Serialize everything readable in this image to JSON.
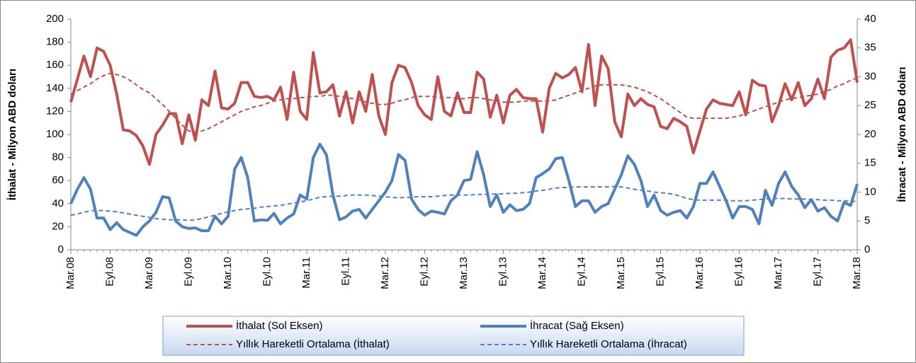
{
  "chart_data": {
    "type": "line",
    "y_label": "İthalat - Milyon  ABD doları",
    "y2_label": "İhracat - Milyon ABD doları",
    "categories": [
      "Mar.08",
      null,
      null,
      null,
      null,
      null,
      "Eyl.08",
      null,
      null,
      null,
      null,
      null,
      "Mar.09",
      null,
      null,
      null,
      null,
      null,
      "Eyl.09",
      null,
      null,
      null,
      null,
      null,
      "Mar.10",
      null,
      null,
      null,
      null,
      null,
      "Eyl.10",
      null,
      null,
      null,
      null,
      null,
      "Mar.11",
      null,
      null,
      null,
      null,
      null,
      "Eyl.11",
      null,
      null,
      null,
      null,
      null,
      "Mar.12",
      null,
      null,
      null,
      null,
      null,
      "Eyl.12",
      null,
      null,
      null,
      null,
      null,
      "Mar.13",
      null,
      null,
      null,
      null,
      null,
      "Eyl.13",
      null,
      null,
      null,
      null,
      null,
      "Mar.14",
      null,
      null,
      null,
      null,
      null,
      "Eyl.14",
      null,
      null,
      null,
      null,
      null,
      "Mar.15",
      null,
      null,
      null,
      null,
      null,
      "Eyl.15",
      null,
      null,
      null,
      null,
      null,
      "Mar.16",
      null,
      null,
      null,
      null,
      null,
      "Eyl.16",
      null,
      null,
      null,
      null,
      null,
      "Mar.17",
      null,
      null,
      null,
      null,
      null,
      "Eyl.17",
      null,
      null,
      null,
      null,
      null,
      "Mar.18"
    ],
    "ylim": [
      0,
      200
    ],
    "yticks": [
      0,
      20,
      40,
      60,
      80,
      100,
      120,
      140,
      160,
      180,
      200
    ],
    "y2lim": [
      0,
      40
    ],
    "y2ticks": [
      0,
      5,
      10,
      15,
      20,
      25,
      30,
      35,
      40
    ],
    "grid": false,
    "legend": "bottom",
    "series": [
      {
        "name": "İthalat (Sol Eksen)",
        "color": "#c0504d",
        "dashed": false,
        "values": [
          128,
          148,
          168,
          150,
          175,
          172,
          160,
          135,
          104,
          103,
          99,
          90,
          74,
          100,
          108,
          118,
          118,
          92,
          117,
          95,
          130,
          125,
          155,
          123,
          122,
          127,
          145,
          145,
          133,
          132,
          133,
          130,
          141,
          113,
          154,
          120,
          113,
          171,
          136,
          137,
          143,
          116,
          137,
          110,
          137,
          120,
          152,
          116,
          100,
          145,
          160,
          158,
          145,
          125,
          117,
          113,
          150,
          120,
          116,
          136,
          119,
          119,
          154,
          148,
          115,
          134,
          110,
          134,
          139,
          132,
          131,
          131,
          102,
          140,
          153,
          149,
          152,
          158,
          137,
          178,
          125,
          168,
          157,
          111,
          98,
          135,
          125,
          131,
          126,
          124,
          107,
          105,
          114,
          111,
          107,
          84,
          103,
          122,
          130,
          127,
          126,
          125,
          137,
          117,
          147,
          143,
          142,
          111,
          125,
          144,
          130,
          145,
          125,
          131,
          148,
          131,
          167,
          173,
          175,
          182,
          145
        ]
      },
      {
        "name": "İhracat (Sağ Eksen)",
        "color": "#4f81bd",
        "dashed": false,
        "axis": "y2",
        "values": [
          8,
          10.5,
          12.5,
          10.5,
          5.5,
          5.5,
          3.5,
          4.7,
          3.5,
          3,
          2.5,
          4,
          5,
          6.5,
          9.2,
          9,
          5,
          4,
          3.7,
          3.8,
          3.3,
          3.3,
          5.8,
          4.5,
          5.8,
          14,
          16,
          12.5,
          5,
          5.2,
          5.1,
          6.3,
          4.5,
          5.5,
          6.2,
          9.5,
          8.8,
          16,
          18.3,
          16.5,
          9.5,
          5.2,
          5.7,
          6.7,
          7,
          5.5,
          7,
          8.5,
          10,
          12,
          16.5,
          15.5,
          8.8,
          7,
          6,
          6.7,
          6.5,
          6.2,
          8.5,
          9.5,
          12,
          12.2,
          17,
          13,
          7.5,
          9.5,
          6.5,
          7.8,
          6.8,
          7,
          8,
          12.5,
          13.2,
          14,
          15.8,
          16,
          12,
          7.5,
          8.5,
          8.5,
          6.5,
          7.5,
          8,
          10.5,
          13,
          16.3,
          14.8,
          12,
          7.5,
          9.5,
          6.8,
          6,
          6.5,
          6.8,
          5.5,
          7.5,
          11.5,
          11.5,
          13.5,
          11,
          8.5,
          5.5,
          7.5,
          7.5,
          7,
          4.5,
          10.3,
          7.7,
          11.5,
          13.5,
          11,
          9.5,
          7.3,
          8.7,
          6.7,
          7.3,
          5.8,
          5,
          8.2,
          7.7,
          11.4
        ]
      },
      {
        "name": "Yıllık Hareketli Ortalama (İthalat)",
        "color": "#c0504d",
        "dashed": true,
        "values": [
          135,
          138,
          141,
          144,
          148,
          151,
          153,
          152,
          150,
          147,
          143,
          139,
          136,
          131,
          126,
          120,
          114,
          108,
          103,
          102,
          103,
          105,
          108,
          111,
          114,
          117,
          120,
          122,
          124,
          125,
          127,
          129,
          130,
          131,
          131,
          132,
          132,
          133,
          133,
          134,
          134,
          133,
          132,
          131,
          130,
          128,
          127,
          126,
          126,
          127,
          129,
          130,
          132,
          133,
          133,
          133,
          132,
          132,
          132,
          131,
          131,
          132,
          132,
          131,
          130,
          129,
          128,
          128,
          128,
          129,
          129,
          129,
          129,
          129,
          130,
          132,
          134,
          136,
          138,
          140,
          142,
          143,
          143,
          143,
          143,
          142,
          141,
          139,
          137,
          134,
          131,
          127,
          123,
          119,
          115,
          114,
          114,
          114,
          114,
          114,
          114,
          115,
          116,
          118,
          120,
          122,
          124,
          126,
          128,
          130,
          131,
          132,
          133,
          134,
          135,
          137,
          139,
          142,
          144,
          147,
          149
        ]
      },
      {
        "name": "Yıllık Hareketli Ortalama (İhracat)",
        "color": "#4f81bd",
        "dashed": true,
        "axis": "y2",
        "values": [
          6.0,
          6.2,
          6.5,
          6.8,
          6.8,
          6.8,
          6.7,
          6.6,
          6.4,
          6.2,
          6.0,
          5.8,
          5.6,
          5.4,
          5.3,
          5.2,
          5.2,
          5.2,
          5.1,
          5.2,
          5.4,
          5.7,
          6.0,
          6.3,
          6.6,
          6.8,
          7.0,
          7.1,
          7.2,
          7.4,
          7.5,
          7.6,
          7.7,
          7.9,
          8.1,
          8.3,
          8.5,
          8.8,
          9.1,
          9.2,
          9.3,
          9.3,
          9.4,
          9.5,
          9.5,
          9.5,
          9.4,
          9.3,
          9.2,
          9.1,
          9.0,
          9.1,
          9.1,
          9.2,
          9.2,
          9.2,
          9.3,
          9.4,
          9.5,
          9.5,
          9.5,
          9.5,
          9.6,
          9.6,
          9.6,
          9.7,
          9.7,
          9.8,
          9.8,
          9.9,
          10.0,
          10.2,
          10.3,
          10.5,
          10.7,
          10.8,
          10.8,
          10.9,
          10.9,
          10.9,
          10.9,
          10.9,
          10.9,
          11.0,
          10.9,
          10.7,
          10.5,
          10.3,
          10.2,
          10.0,
          9.9,
          9.8,
          9.6,
          9.3,
          8.9,
          8.7,
          8.6,
          8.6,
          8.6,
          8.6,
          8.6,
          8.5,
          8.5,
          8.5,
          8.6,
          8.7,
          8.8,
          8.9,
          8.9,
          8.9,
          8.8,
          8.8,
          8.8,
          8.7,
          8.7,
          8.6,
          8.6,
          8.5,
          8.5,
          8.4,
          8.4
        ]
      }
    ]
  }
}
